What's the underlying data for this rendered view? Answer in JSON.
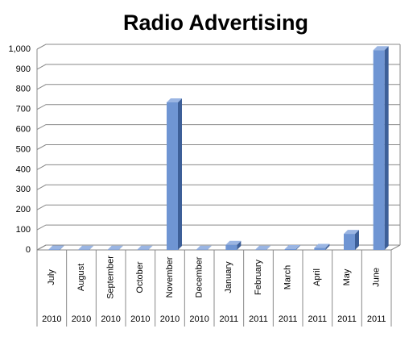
{
  "chart_data": {
    "type": "bar3d",
    "title": "Radio Advertising",
    "categories": [
      "July",
      "August",
      "September",
      "October",
      "November",
      "December",
      "January",
      "February",
      "March",
      "April",
      "May",
      "June"
    ],
    "years": [
      "2010",
      "2010",
      "2010",
      "2010",
      "2010",
      "2010",
      "2011",
      "2011",
      "2011",
      "2011",
      "2011",
      "2011"
    ],
    "values": [
      2,
      1,
      1,
      1,
      735,
      1,
      25,
      1,
      4,
      10,
      80,
      995
    ],
    "color": "#6f95d3",
    "ylim": [
      0,
      1000
    ],
    "yticks": [
      0,
      100,
      200,
      300,
      400,
      500,
      600,
      700,
      800,
      900,
      {
        "value": 1000,
        "label": "1,000"
      }
    ],
    "grid": true
  }
}
